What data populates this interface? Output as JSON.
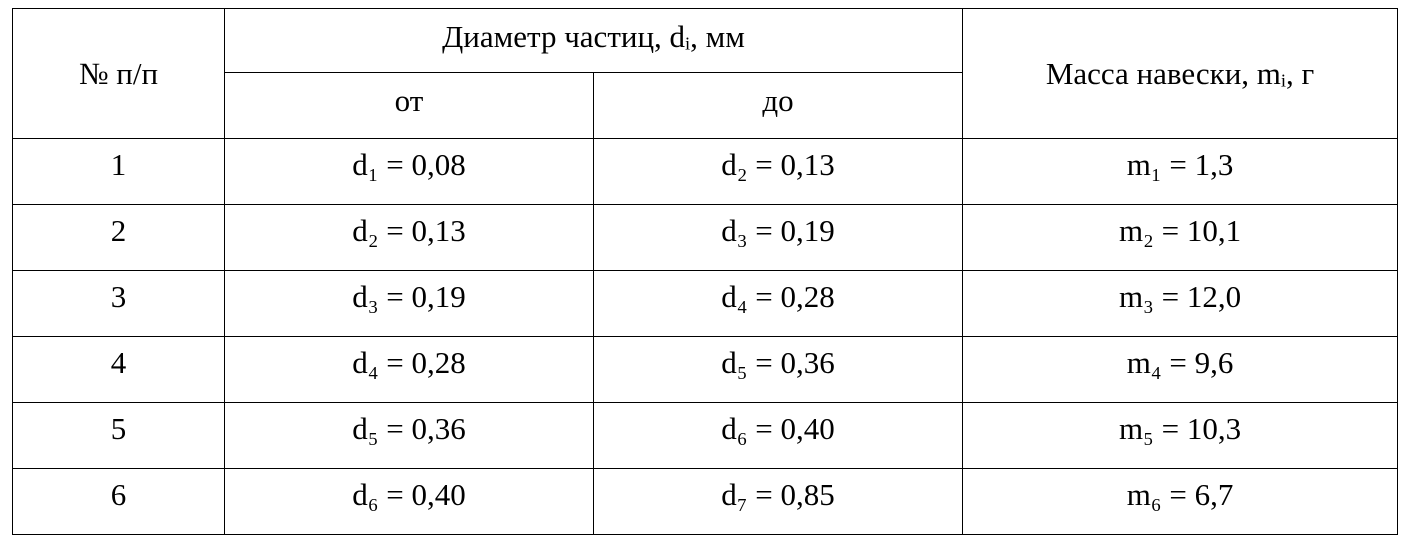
{
  "table": {
    "header": {
      "number": "№ п/п",
      "diameter": "Диаметр частиц, dᵢ, мм",
      "from": "от",
      "to": "до",
      "mass": "Масса навески, mᵢ, г"
    },
    "rows": [
      [
        "1",
        "d₁ = 0,08",
        "d₂ = 0,13",
        "m₁ = 1,3"
      ],
      [
        "2",
        "d₂ = 0,13",
        "d₃ = 0,19",
        "m₂ = 10,1"
      ],
      [
        "3",
        "d₃ = 0,19",
        "d₄ = 0,28",
        "m₃ = 12,0"
      ],
      [
        "4",
        "d₄ = 0,28",
        "d₅ = 0,36",
        "m₄ = 9,6"
      ],
      [
        "5",
        "d₅ = 0,36",
        "d₆ = 0,40",
        "m₅ = 10,3"
      ],
      [
        "6",
        "d₆ = 0,40",
        "d₇ = 0,85",
        "m₆ = 6,7"
      ]
    ]
  }
}
